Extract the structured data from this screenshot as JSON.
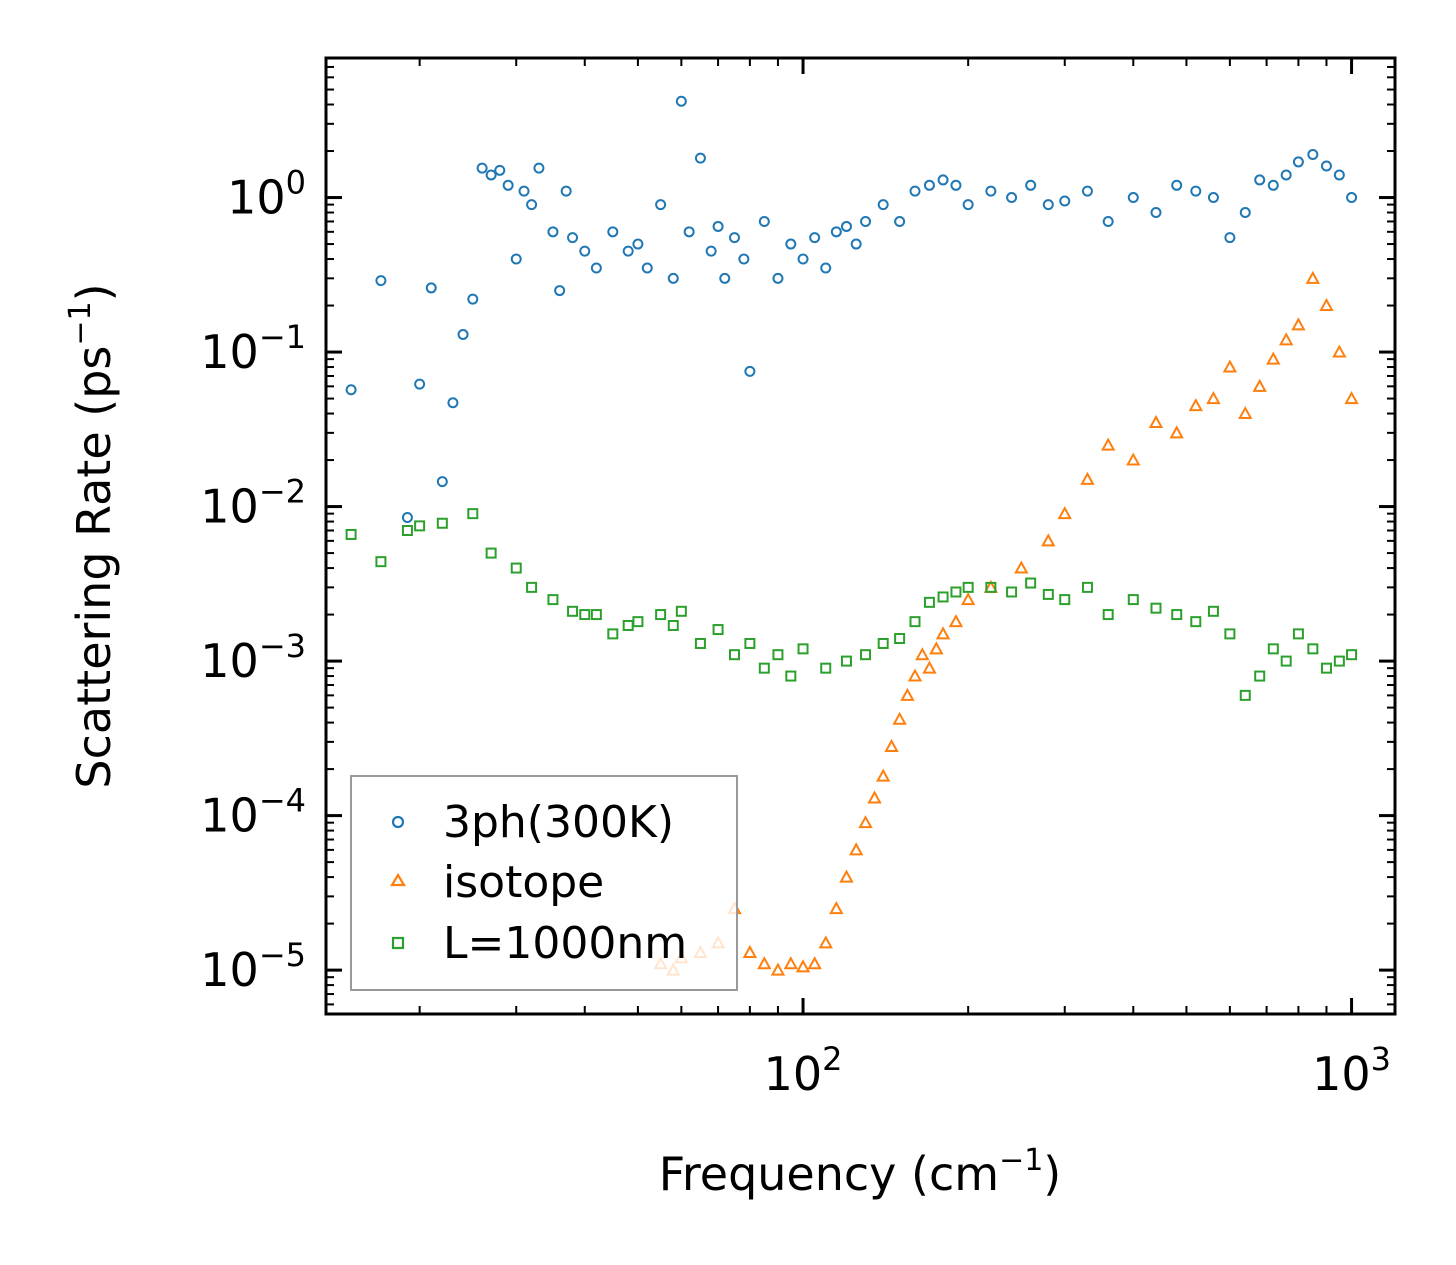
{
  "chart_data": {
    "type": "scatter",
    "title": "",
    "xlabel": "Frequency (cm",
    "xlabel_sup": "−1",
    "xlabel_end": ")",
    "ylabel": "Scattering Rate (ps",
    "ylabel_sup": "−1",
    "ylabel_end": ")",
    "xscale": "log",
    "yscale": "log",
    "xlim": [
      13.5,
      1200
    ],
    "ylim": [
      5.2e-06,
      8.0
    ],
    "xticks": [
      {
        "value": 100,
        "base": "10",
        "exp": "2"
      },
      {
        "value": 1000,
        "base": "10",
        "exp": "3"
      }
    ],
    "yticks": [
      {
        "value": 1,
        "base": "10",
        "exp": "0"
      },
      {
        "value": 0.1,
        "base": "10",
        "exp": "−1"
      },
      {
        "value": 0.01,
        "base": "10",
        "exp": "−2"
      },
      {
        "value": 0.001,
        "base": "10",
        "exp": "−3"
      },
      {
        "value": 0.0001,
        "base": "10",
        "exp": "−4"
      },
      {
        "value": 1e-05,
        "base": "10",
        "exp": "−5"
      }
    ],
    "legend_position": "lower-left",
    "series": [
      {
        "name": "3ph(300K)",
        "marker": "circle",
        "color": "#1f77b4",
        "x": [
          15,
          17,
          19,
          20,
          21,
          22,
          23,
          24,
          25,
          26,
          27,
          28,
          29,
          30,
          31,
          32,
          33,
          35,
          36,
          37,
          38,
          40,
          42,
          45,
          48,
          50,
          52,
          55,
          58,
          60,
          62,
          65,
          68,
          70,
          72,
          75,
          78,
          80,
          85,
          90,
          95,
          100,
          105,
          110,
          115,
          120,
          125,
          130,
          140,
          150,
          160,
          170,
          180,
          190,
          200,
          220,
          240,
          260,
          280,
          300,
          330,
          360,
          400,
          440,
          480,
          520,
          560,
          600,
          640,
          680,
          720,
          760,
          800,
          850,
          900,
          950,
          1000
        ],
        "y": [
          0.057,
          0.29,
          0.0085,
          0.062,
          0.26,
          0.0145,
          0.047,
          0.13,
          0.22,
          1.55,
          1.4,
          1.5,
          1.2,
          0.4,
          1.1,
          0.9,
          1.55,
          0.6,
          0.25,
          1.1,
          0.55,
          0.45,
          0.35,
          0.6,
          0.45,
          0.5,
          0.35,
          0.9,
          0.3,
          4.2,
          0.6,
          1.8,
          0.45,
          0.65,
          0.3,
          0.55,
          0.4,
          0.075,
          0.7,
          0.3,
          0.5,
          0.4,
          0.55,
          0.35,
          0.6,
          0.65,
          0.5,
          0.7,
          0.9,
          0.7,
          1.1,
          1.2,
          1.3,
          1.2,
          0.9,
          1.1,
          1.0,
          1.2,
          0.9,
          0.95,
          1.1,
          0.7,
          1.0,
          0.8,
          1.2,
          1.1,
          1.0,
          0.55,
          0.8,
          1.3,
          1.2,
          1.4,
          1.7,
          1.9,
          1.6,
          1.4,
          1.0
        ]
      },
      {
        "name": "isotope",
        "marker": "triangle",
        "color": "#ff7f0e",
        "x": [
          55,
          58,
          60,
          65,
          70,
          75,
          80,
          85,
          90,
          95,
          100,
          105,
          110,
          115,
          120,
          125,
          130,
          135,
          140,
          145,
          150,
          155,
          160,
          165,
          170,
          175,
          180,
          190,
          200,
          220,
          250,
          280,
          300,
          330,
          360,
          400,
          440,
          480,
          520,
          560,
          600,
          640,
          680,
          720,
          760,
          800,
          850,
          900,
          950,
          1000
        ],
        "y": [
          1.1e-05,
          1e-05,
          1.2e-05,
          1.3e-05,
          1.5e-05,
          2.5e-05,
          1.3e-05,
          1.1e-05,
          1e-05,
          1.1e-05,
          1.05e-05,
          1.1e-05,
          1.5e-05,
          2.5e-05,
          4e-05,
          6e-05,
          9e-05,
          0.00013,
          0.00018,
          0.00028,
          0.00042,
          0.0006,
          0.0008,
          0.0011,
          0.0009,
          0.0012,
          0.0015,
          0.0018,
          0.0025,
          0.003,
          0.004,
          0.006,
          0.009,
          0.015,
          0.025,
          0.02,
          0.035,
          0.03,
          0.045,
          0.05,
          0.08,
          0.04,
          0.06,
          0.09,
          0.12,
          0.15,
          0.3,
          0.2,
          0.1,
          0.05
        ]
      },
      {
        "name": "L=1000nm",
        "marker": "square",
        "color": "#2ca02c",
        "x": [
          15,
          17,
          19,
          20,
          22,
          25,
          27,
          30,
          32,
          35,
          38,
          40,
          42,
          45,
          48,
          50,
          55,
          58,
          60,
          65,
          70,
          75,
          80,
          85,
          90,
          95,
          100,
          110,
          120,
          130,
          140,
          150,
          160,
          170,
          180,
          190,
          200,
          220,
          240,
          260,
          280,
          300,
          330,
          360,
          400,
          440,
          480,
          520,
          560,
          600,
          640,
          680,
          720,
          760,
          800,
          850,
          900,
          950,
          1000
        ],
        "y": [
          0.0066,
          0.0044,
          0.007,
          0.0075,
          0.0078,
          0.009,
          0.005,
          0.004,
          0.003,
          0.0025,
          0.0021,
          0.002,
          0.002,
          0.0015,
          0.0017,
          0.0018,
          0.002,
          0.0017,
          0.0021,
          0.0013,
          0.0016,
          0.0011,
          0.0013,
          0.0009,
          0.0011,
          0.0008,
          0.0012,
          0.0009,
          0.001,
          0.0011,
          0.0013,
          0.0014,
          0.0018,
          0.0024,
          0.0026,
          0.0028,
          0.003,
          0.003,
          0.0028,
          0.0032,
          0.0027,
          0.0025,
          0.003,
          0.002,
          0.0025,
          0.0022,
          0.002,
          0.0018,
          0.0021,
          0.0015,
          0.0006,
          0.0008,
          0.0012,
          0.001,
          0.0015,
          0.0012,
          0.0009,
          0.001,
          0.0011
        ]
      }
    ]
  }
}
